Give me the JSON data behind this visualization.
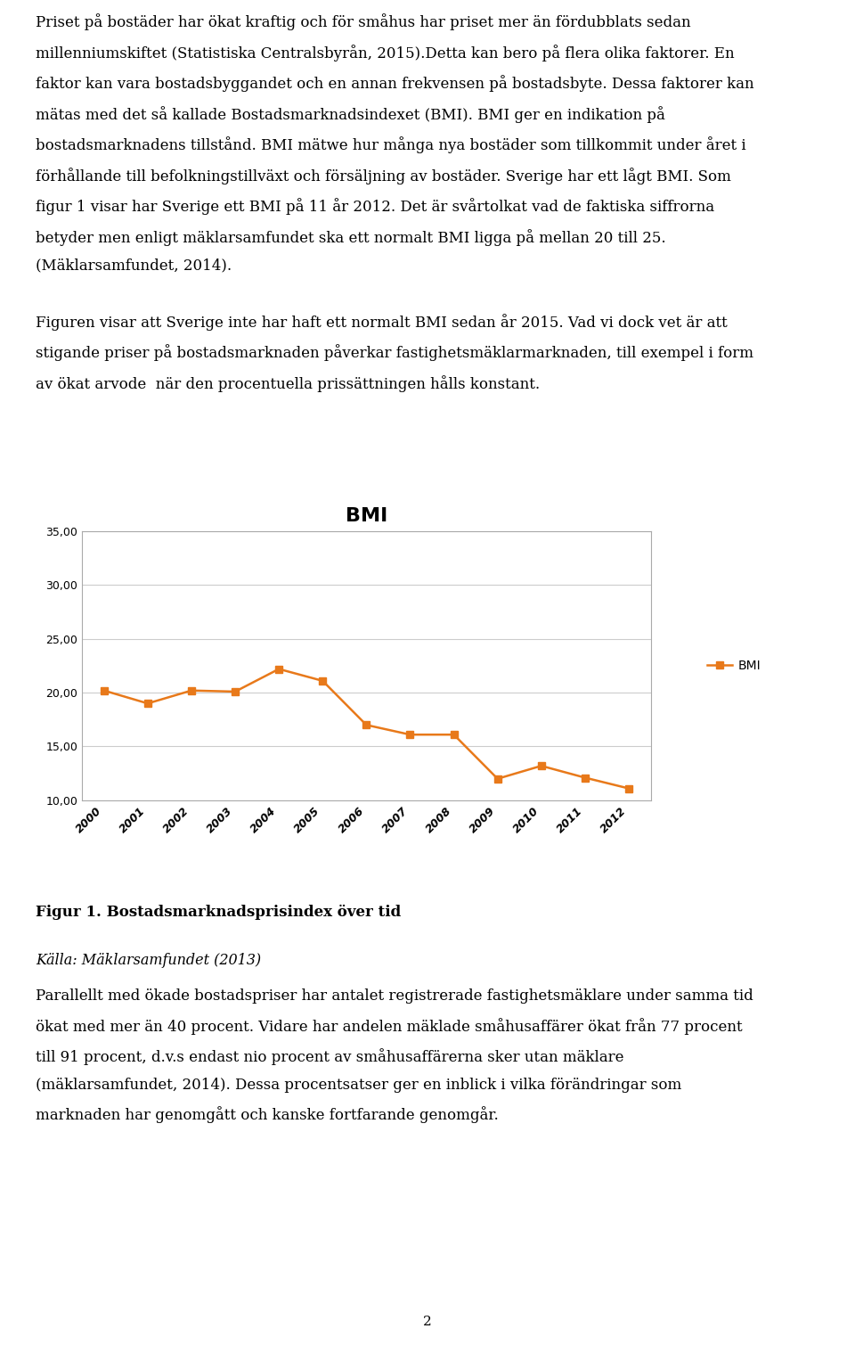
{
  "title": "BMI",
  "years": [
    2000,
    2001,
    2002,
    2003,
    2004,
    2005,
    2006,
    2007,
    2008,
    2009,
    2010,
    2011,
    2012
  ],
  "bmi_values": [
    20.2,
    19.0,
    20.2,
    20.1,
    22.2,
    21.1,
    17.0,
    16.1,
    16.1,
    12.0,
    13.2,
    12.1,
    11.1
  ],
  "line_color": "#E8791A",
  "marker_color": "#E8791A",
  "marker_style": "s",
  "legend_label": "BMI",
  "ylim_min": 10.0,
  "ylim_max": 35.0,
  "yticks": [
    10.0,
    15.0,
    20.0,
    25.0,
    30.0,
    35.0
  ],
  "ytick_labels": [
    "10,00",
    "15,00",
    "20,00",
    "25,00",
    "30,00",
    "35,00"
  ],
  "background_color": "#ffffff",
  "chart_bg_color": "#ffffff",
  "grid_color": "#cccccc",
  "title_fontsize": 16,
  "tick_fontsize": 9,
  "legend_fontsize": 10,
  "para1": "Priset på bostäder har ökat kraftig och för småhus har priset mer än fördubblats sedan\nmillenniumskiftet (Statistiska Centralsbyrån, 2015).Detta kan bero på flera olika faktorer. En\nfaktor kan vara bostadsbyggandet och en annan frekvensen på bostadsbyte. Dessa faktorer kan\nmätas med det så kallade Bostadsmarknadsindexet (BMI). BMI ger en indikation på\nbostadsmarknadens tillstånd. BMI mätwe hur många nya bostäder som tillkommit under året i\nförhållande till befolkningstillväxt och försäljning av bostäder. Sverige har ett lågt BMI. Som\nfigur 1 visar har Sverige ett BMI på 11 år 2012. Det är svårtolkat vad de faktiska siffrorna\nbetyder men enligt mäklarsamfundet ska ett normalt BMI ligga på mellan 20 till 25.\n(Mäklarsamfundet, 2014).",
  "para2": "Figuren visar att Sverige inte har haft ett normalt BMI sedan år 2015. Vad vi dock vet är att\nstigande priser på bostadsmarknaden påverkar fastighetsmäklarmarknaden, till exempel i form\nav ökat arvode  när den procentuella prissättningen hålls konstant.",
  "para3": "Parallellt med ökade bostadspriser har antalet registrerade fastighetsmäklare under samma tid\nökat med mer än 40 procent. Vidare har andelen mäklade småhusaffärer ökat från 77 procent\ntill 91 procent, d.v.s endast nio procent av småhusaffärerna sker utan mäklare\n(mäklarsamfundet, 2014). Dessa procentsatser ger en inblick i vilka förändringar som\nmarknaden har genomgått och kanske fortfarande genomgår.",
  "figure_caption_bold": "Figur 1. Bostadsmarknadsprisindex över tid",
  "figure_caption_normal": "Källa: Mäklarsamfundet (2013)",
  "page_number": "2"
}
